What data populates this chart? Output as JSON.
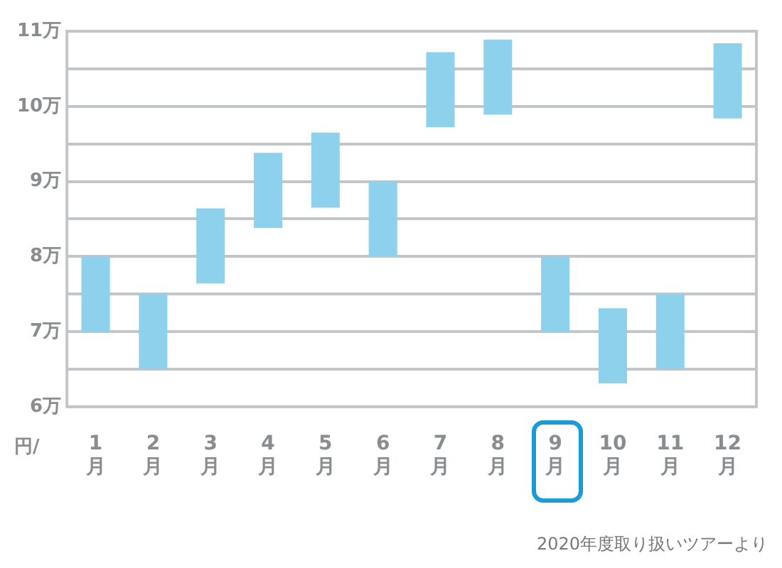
{
  "chart_data": {
    "type": "bar",
    "ylabel": "円/",
    "categories": [
      "1月",
      "2月",
      "3月",
      "4月",
      "5月",
      "6月",
      "7月",
      "8月",
      "9月",
      "10月",
      "11月",
      "12月"
    ],
    "base": [
      7,
      6.5,
      7.64,
      8.38,
      8.65,
      8,
      9.72,
      9.89,
      7,
      6.31,
      6.5,
      9.84
    ],
    "values": [
      1,
      1,
      1,
      1,
      1,
      1,
      1,
      1,
      1,
      1,
      1,
      1
    ],
    "color": "#8dd1ec",
    "ylim": [
      6,
      11
    ],
    "yticks": [
      {
        "value": 6,
        "label": "6万"
      },
      {
        "value": 6.5,
        "label": null
      },
      {
        "value": 7,
        "label": "7万"
      },
      {
        "value": 7.5,
        "label": null
      },
      {
        "value": 8,
        "label": "8万"
      },
      {
        "value": 8.5,
        "label": null
      },
      {
        "value": 9,
        "label": "9万"
      },
      {
        "value": 9.5,
        "label": null
      },
      {
        "value": 10,
        "label": "10万"
      },
      {
        "value": 10.5,
        "label": null
      },
      {
        "value": 11,
        "label": "11万"
      }
    ],
    "grid": "y",
    "legend": false,
    "annotations": [
      "2020年度取り扱いツアーより"
    ]
  }
}
